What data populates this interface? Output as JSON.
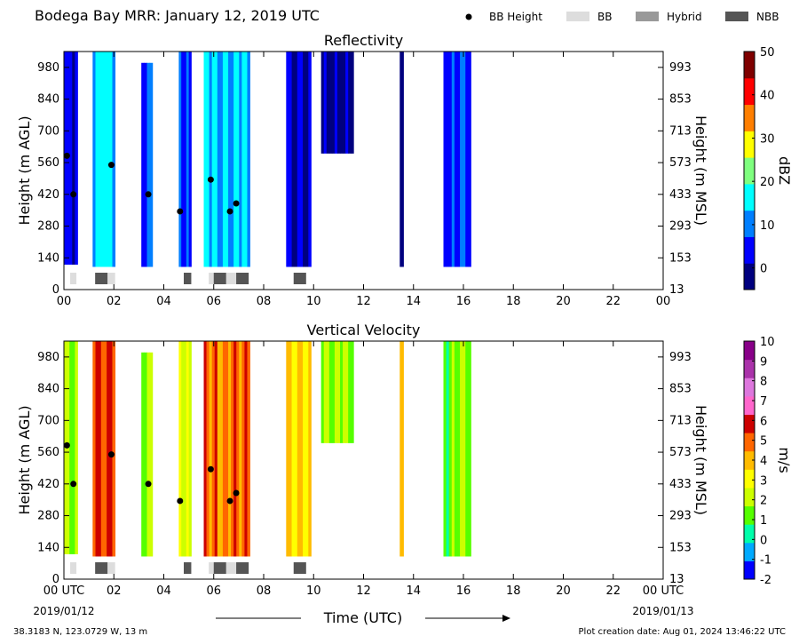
{
  "header": {
    "title": "Bodega Bay MRR:  January 12, 2019 UTC",
    "legend": [
      {
        "label": "BB Height",
        "kind": "dot",
        "color": "#000000"
      },
      {
        "label": "BB",
        "kind": "box",
        "color": "#dddddd"
      },
      {
        "label": "Hybrid",
        "kind": "box",
        "color": "#999999"
      },
      {
        "label": "NBB",
        "kind": "box",
        "color": "#555555"
      }
    ]
  },
  "chart_data": [
    {
      "type": "heatmap",
      "title": "Reflectivity",
      "ylabel": "Height (m AGL)",
      "ylabel_right": "Height (m MSL)",
      "x_ticks": [
        "00",
        "02",
        "04",
        "06",
        "08",
        "10",
        "12",
        "14",
        "16",
        "18",
        "20",
        "22",
        "00"
      ],
      "y_ticks": [
        0,
        140,
        280,
        420,
        560,
        700,
        840,
        980
      ],
      "y_ticks_right": [
        13,
        153,
        293,
        433,
        573,
        713,
        853,
        993
      ],
      "xlim": [
        0,
        24
      ],
      "ylim": [
        0,
        1050
      ],
      "colorbar": {
        "label": "dBZ",
        "range": [
          -5,
          50
        ],
        "ticks": [
          0,
          10,
          20,
          30,
          40,
          50
        ],
        "colors": [
          "#00007f",
          "#0000ff",
          "#007fff",
          "#00ffff",
          "#7fff7f",
          "#ffff00",
          "#ff7f00",
          "#ff0000",
          "#7f0000"
        ]
      },
      "columns": [
        {
          "t0": 0.0,
          "t1": 0.55,
          "bottom": 110,
          "top": 1050,
          "value": 3
        },
        {
          "t0": 1.15,
          "t1": 2.05,
          "bottom": 100,
          "top": 1050,
          "value": 16
        },
        {
          "t0": 3.1,
          "t1": 3.55,
          "bottom": 100,
          "top": 1000,
          "value": 7
        },
        {
          "t0": 4.6,
          "t1": 5.1,
          "bottom": 100,
          "top": 1050,
          "value": 6
        },
        {
          "t0": 5.6,
          "t1": 7.45,
          "bottom": 100,
          "top": 1050,
          "value": 14
        },
        {
          "t0": 8.9,
          "t1": 9.9,
          "bottom": 100,
          "top": 1050,
          "value": 0
        },
        {
          "t0": 10.3,
          "t1": 11.6,
          "bottom": 600,
          "top": 1050,
          "value": -1
        },
        {
          "t0": 13.45,
          "t1": 13.6,
          "bottom": 100,
          "top": 1050,
          "value": 2
        },
        {
          "t0": 15.2,
          "t1": 16.3,
          "bottom": 100,
          "top": 1050,
          "value": 6
        }
      ],
      "bb_height": [
        {
          "t": 0.12,
          "h": 590
        },
        {
          "t": 0.38,
          "h": 420
        },
        {
          "t": 1.9,
          "h": 550
        },
        {
          "t": 3.38,
          "h": 420
        },
        {
          "t": 4.65,
          "h": 345
        },
        {
          "t": 5.88,
          "h": 485
        },
        {
          "t": 6.65,
          "h": 345
        },
        {
          "t": 6.9,
          "h": 380
        }
      ],
      "bb_segments": [
        {
          "t0": 0.25,
          "t1": 0.5,
          "cls": "BB"
        },
        {
          "t0": 1.25,
          "t1": 1.75,
          "cls": "NBB"
        },
        {
          "t0": 1.75,
          "t1": 2.05,
          "cls": "BB"
        },
        {
          "t0": 4.8,
          "t1": 5.1,
          "cls": "NBB"
        },
        {
          "t0": 5.8,
          "t1": 6.0,
          "cls": "BB"
        },
        {
          "t0": 6.0,
          "t1": 6.5,
          "cls": "NBB"
        },
        {
          "t0": 6.5,
          "t1": 6.9,
          "cls": "BB"
        },
        {
          "t0": 6.9,
          "t1": 7.4,
          "cls": "NBB"
        },
        {
          "t0": 9.2,
          "t1": 9.7,
          "cls": "NBB"
        }
      ]
    },
    {
      "type": "heatmap",
      "title": "Vertical Velocity",
      "ylabel": "Height (m AGL)",
      "ylabel_right": "Height (m MSL)",
      "x_ticks": [
        "00 UTC",
        "02",
        "04",
        "06",
        "08",
        "10",
        "12",
        "14",
        "16",
        "18",
        "20",
        "22",
        "00 UTC"
      ],
      "x_sublabels": {
        "start": "2019/01/12",
        "end": "2019/01/13"
      },
      "xlabel": "Time (UTC)",
      "y_ticks": [
        0,
        140,
        280,
        420,
        560,
        700,
        840,
        980
      ],
      "y_ticks_right": [
        13,
        153,
        293,
        433,
        573,
        713,
        853,
        993
      ],
      "xlim": [
        0,
        24
      ],
      "ylim": [
        0,
        1050
      ],
      "colorbar": {
        "label": "m/s",
        "range": [
          -2,
          10
        ],
        "ticks": [
          -2,
          -1,
          0,
          1,
          2,
          3,
          4,
          5,
          6,
          7,
          8,
          9,
          10
        ],
        "colors": [
          "#0000ff",
          "#00aaff",
          "#00ffaa",
          "#55ff00",
          "#ccff00",
          "#ffff00",
          "#ffbb00",
          "#ff6600",
          "#cc0000",
          "#ff66cc",
          "#dd77dd",
          "#aa33aa",
          "#880088"
        ]
      },
      "columns": [
        {
          "t0": 0.0,
          "t1": 0.55,
          "bottom": 110,
          "top": 1050,
          "value": 1.8
        },
        {
          "t0": 1.15,
          "t1": 2.05,
          "bottom": 100,
          "top": 1050,
          "value": 5.5
        },
        {
          "t0": 3.1,
          "t1": 3.55,
          "bottom": 100,
          "top": 1000,
          "value": 1.5
        },
        {
          "t0": 4.6,
          "t1": 5.1,
          "bottom": 100,
          "top": 1050,
          "value": 2.5
        },
        {
          "t0": 5.6,
          "t1": 7.45,
          "bottom": 100,
          "top": 1050,
          "value": 4.8
        },
        {
          "t0": 8.9,
          "t1": 9.9,
          "bottom": 100,
          "top": 1050,
          "value": 3.3
        },
        {
          "t0": 10.3,
          "t1": 11.6,
          "bottom": 600,
          "top": 1050,
          "value": 1.8
        },
        {
          "t0": 13.45,
          "t1": 13.6,
          "bottom": 100,
          "top": 1050,
          "value": 5.0
        },
        {
          "t0": 15.2,
          "t1": 16.3,
          "bottom": 100,
          "top": 1050,
          "value": 1.4
        }
      ],
      "bb_height": [
        {
          "t": 0.12,
          "h": 590
        },
        {
          "t": 0.38,
          "h": 420
        },
        {
          "t": 1.9,
          "h": 550
        },
        {
          "t": 3.38,
          "h": 420
        },
        {
          "t": 4.65,
          "h": 345
        },
        {
          "t": 5.88,
          "h": 485
        },
        {
          "t": 6.65,
          "h": 345
        },
        {
          "t": 6.9,
          "h": 380
        }
      ],
      "bb_segments": [
        {
          "t0": 0.25,
          "t1": 0.5,
          "cls": "BB"
        },
        {
          "t0": 1.25,
          "t1": 1.75,
          "cls": "NBB"
        },
        {
          "t0": 1.75,
          "t1": 2.05,
          "cls": "BB"
        },
        {
          "t0": 4.8,
          "t1": 5.1,
          "cls": "NBB"
        },
        {
          "t0": 5.8,
          "t1": 6.0,
          "cls": "BB"
        },
        {
          "t0": 6.0,
          "t1": 6.5,
          "cls": "NBB"
        },
        {
          "t0": 6.5,
          "t1": 6.9,
          "cls": "BB"
        },
        {
          "t0": 6.9,
          "t1": 7.4,
          "cls": "NBB"
        },
        {
          "t0": 9.2,
          "t1": 9.7,
          "cls": "NBB"
        }
      ]
    }
  ],
  "footer": {
    "location": "38.3183 N, 123.0729 W, 13 m",
    "created": "Plot creation date: Aug 01, 2024 13:46:22 UTC"
  }
}
